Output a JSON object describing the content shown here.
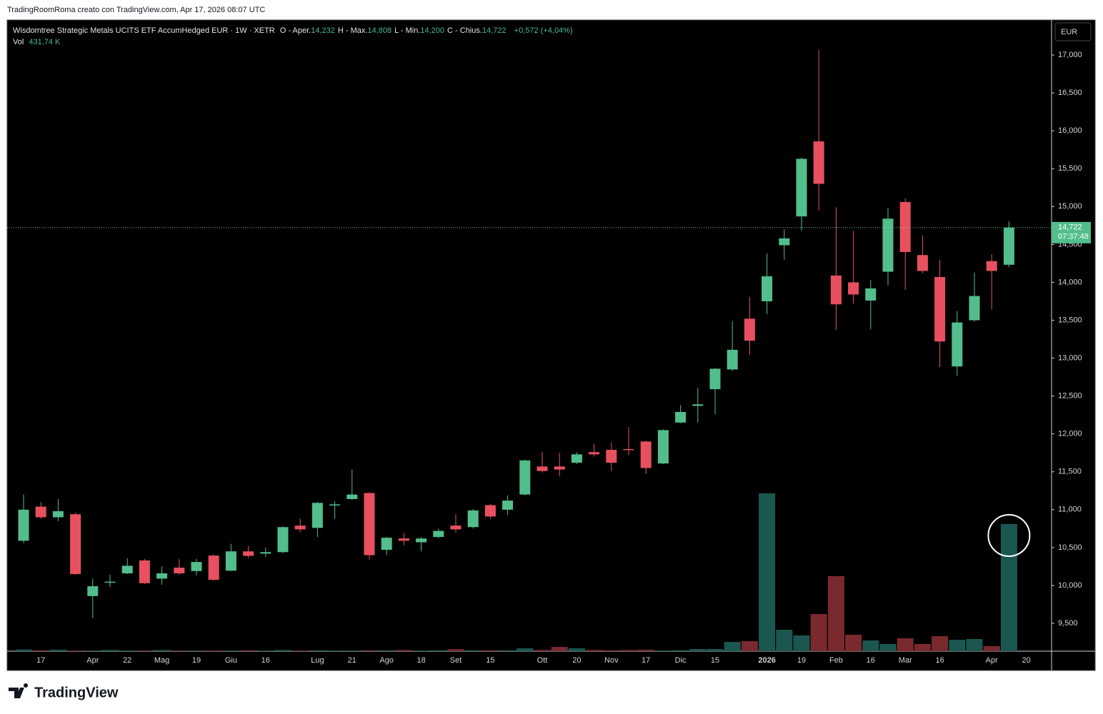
{
  "caption": "TradingRoomRoma creato con TradingView.com, Apr 17, 2026 08:07 UTC",
  "legend": {
    "symbol": "Wisdomtree Strategic Metals UCITS ETF AccumHedged EUR · 1W · XETR",
    "fields": [
      {
        "label": "O - Aper.",
        "value": "14,232"
      },
      {
        "label": "H - Max.",
        "value": "14,808"
      },
      {
        "label": "L - Min.",
        "value": "14,200"
      },
      {
        "label": "C - Chius.",
        "value": "14,722"
      }
    ],
    "change": "+0,572 (+4,04%)",
    "volume_label": "Vol",
    "volume_value": "431,74 K"
  },
  "currency": "EUR",
  "price_tag": {
    "label": "14,722",
    "countdown": "07:37:48"
  },
  "brand": "TradingView",
  "chart_data": {
    "type": "candlestick",
    "categories": [
      null,
      "17",
      null,
      null,
      "Apr",
      null,
      "22",
      null,
      "Mag",
      null,
      "19",
      null,
      "Giu",
      null,
      "16",
      null,
      null,
      "Lug",
      null,
      "21",
      null,
      "Ago",
      null,
      "18",
      null,
      "Set",
      null,
      "15",
      null,
      null,
      "Ott",
      null,
      "20",
      null,
      "Nov",
      null,
      "17",
      null,
      "Dic",
      null,
      "15",
      null,
      null,
      "2026",
      null,
      "19",
      null,
      "Feb",
      null,
      "16",
      null,
      "Mar",
      null,
      "16",
      null,
      null,
      "Apr",
      null,
      "20"
    ],
    "open": [
      10590,
      11040,
      10900,
      10940,
      9860,
      10040,
      10160,
      10330,
      10090,
      10235,
      10190,
      10395,
      10195,
      10450,
      10420,
      10440,
      10790,
      10760,
      11060,
      11140,
      11220,
      10470,
      10620,
      10570,
      10640,
      10790,
      10770,
      11060,
      11000,
      11200,
      11570,
      11570,
      11620,
      11760,
      11790,
      11800,
      11900,
      11610,
      12150,
      12370,
      12590,
      12850,
      13520,
      13750,
      14490,
      14870,
      15860,
      14090,
      14000,
      13760,
      14140,
      15060,
      14360,
      14070,
      12890,
      13500,
      14280,
      14232,
      null
    ],
    "high": [
      11200,
      11100,
      11140,
      10960,
      10090,
      10140,
      10360,
      10350,
      10250,
      10350,
      10350,
      10410,
      10550,
      10520,
      10500,
      10780,
      10880,
      11100,
      11110,
      11530,
      11230,
      10640,
      10690,
      10640,
      10750,
      10940,
      11010,
      11080,
      11190,
      11660,
      11760,
      11750,
      11760,
      11870,
      11890,
      12090,
      11910,
      12060,
      12380,
      12610,
      12870,
      13490,
      13810,
      14380,
      14700,
      15650,
      17070,
      14990,
      14680,
      14030,
      14980,
      15110,
      14620,
      14300,
      13620,
      14130,
      14370,
      14808,
      null
    ],
    "low": [
      10560,
      10880,
      10850,
      10140,
      9570,
      9980,
      10150,
      10020,
      10010,
      10140,
      10130,
      10065,
      10190,
      10360,
      10375,
      10430,
      10700,
      10640,
      10880,
      11130,
      10340,
      10400,
      10530,
      10450,
      10620,
      10700,
      10750,
      10880,
      10930,
      11190,
      11490,
      11440,
      11600,
      11700,
      11510,
      11720,
      11470,
      11600,
      12140,
      12150,
      12260,
      12830,
      13040,
      13580,
      14300,
      14680,
      14950,
      13370,
      13720,
      13380,
      13960,
      13900,
      14120,
      12880,
      12770,
      13480,
      13640,
      14200,
      null
    ],
    "close": [
      11000,
      10900,
      10980,
      10150,
      9990,
      10050,
      10260,
      10030,
      10160,
      10160,
      10310,
      10075,
      10450,
      10390,
      10440,
      10770,
      10740,
      11090,
      11070,
      11200,
      10400,
      10630,
      10590,
      10620,
      10720,
      10740,
      10990,
      10910,
      11120,
      11650,
      11510,
      11530,
      11730,
      11730,
      11620,
      11790,
      11550,
      12050,
      12290,
      12390,
      12860,
      13110,
      13230,
      14080,
      14580,
      15630,
      15300,
      13710,
      13840,
      13920,
      14840,
      14400,
      14150,
      13220,
      13470,
      13820,
      14150,
      14722,
      null
    ],
    "volume": [
      6000,
      3000,
      5000,
      2000,
      2000,
      4000,
      2000,
      2000,
      4000,
      2000,
      2000,
      2000,
      2000,
      3000,
      2000,
      4000,
      2000,
      3000,
      2000,
      2000,
      3000,
      3000,
      4000,
      2000,
      3000,
      7000,
      3000,
      3000,
      3000,
      9700,
      4000,
      14500,
      9700,
      4000,
      3000,
      4000,
      5000,
      2000,
      3000,
      7300,
      7300,
      31500,
      34000,
      536000,
      72800,
      53400,
      126000,
      255000,
      55800,
      36400,
      24300,
      43700,
      24300,
      50900,
      38800,
      41200,
      17000,
      431740,
      null
    ],
    "up_color": "#52be8c",
    "down_color": "#e8505f",
    "volume_up_color": "#1b5750",
    "volume_down_color": "#7a2a2e",
    "ylim": [
      9133,
      17443
    ],
    "yticks": [
      {
        "value": 9500,
        "label": "9,500"
      },
      {
        "value": 10000,
        "label": "10,000"
      },
      {
        "value": 10500,
        "label": "10,500"
      },
      {
        "value": 11000,
        "label": "11,000"
      },
      {
        "value": 11500,
        "label": "11,500"
      },
      {
        "value": 12000,
        "label": "12,000"
      },
      {
        "value": 12500,
        "label": "12,500"
      },
      {
        "value": 13000,
        "label": "13,000"
      },
      {
        "value": 13500,
        "label": "13,500"
      },
      {
        "value": 14000,
        "label": "14,000"
      },
      {
        "value": 14500,
        "label": "14,500"
      },
      {
        "value": 15000,
        "label": "15,000"
      },
      {
        "value": 15500,
        "label": "15,500"
      },
      {
        "value": 16000,
        "label": "16,000"
      },
      {
        "value": 16500,
        "label": "16,500"
      },
      {
        "value": 17000,
        "label": "17,000"
      }
    ],
    "grid": false
  }
}
